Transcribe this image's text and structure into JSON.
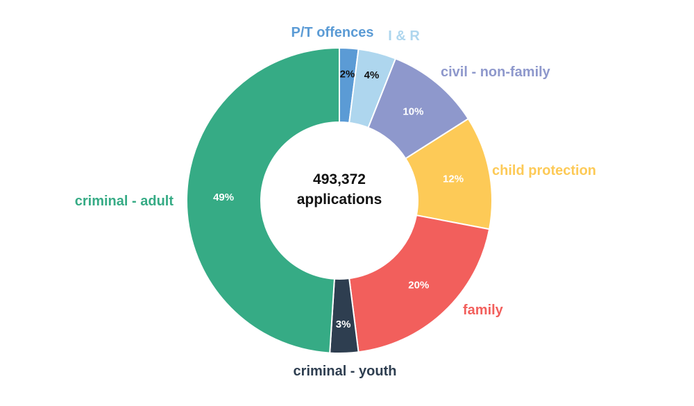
{
  "chart_data": {
    "type": "pie",
    "variant": "donut",
    "center_label": {
      "value": "493,372",
      "unit": "applications"
    },
    "start_angle_deg": 0,
    "direction": "clockwise",
    "slices": [
      {
        "name": "P/T offences",
        "value": 2,
        "pct_label": "2%",
        "color": "#5B9BD5",
        "label_color": "#5B9BD5",
        "pct_color": "#111111"
      },
      {
        "name": "I & R",
        "value": 4,
        "pct_label": "4%",
        "color": "#AED6EE",
        "label_color": "#AED6EE",
        "pct_color": "#111111"
      },
      {
        "name": "civil - non-family",
        "value": 10,
        "pct_label": "10%",
        "color": "#8E98CC",
        "label_color": "#8E98CC",
        "pct_color": "#ffffff"
      },
      {
        "name": "child protection",
        "value": 12,
        "pct_label": "12%",
        "color": "#FDCA57",
        "label_color": "#FDCA57",
        "pct_color": "#ffffff"
      },
      {
        "name": "family",
        "value": 20,
        "pct_label": "20%",
        "color": "#F25F5C",
        "label_color": "#F25F5C",
        "pct_color": "#ffffff"
      },
      {
        "name": "criminal - youth",
        "value": 3,
        "pct_label": "3%",
        "color": "#2E3E50",
        "label_color": "#2E3E50",
        "pct_color": "#ffffff"
      },
      {
        "name": "criminal - adult",
        "value": 49,
        "pct_label": "49%",
        "color": "#36AB85",
        "label_color": "#36AB85",
        "pct_color": "#ffffff"
      }
    ]
  }
}
